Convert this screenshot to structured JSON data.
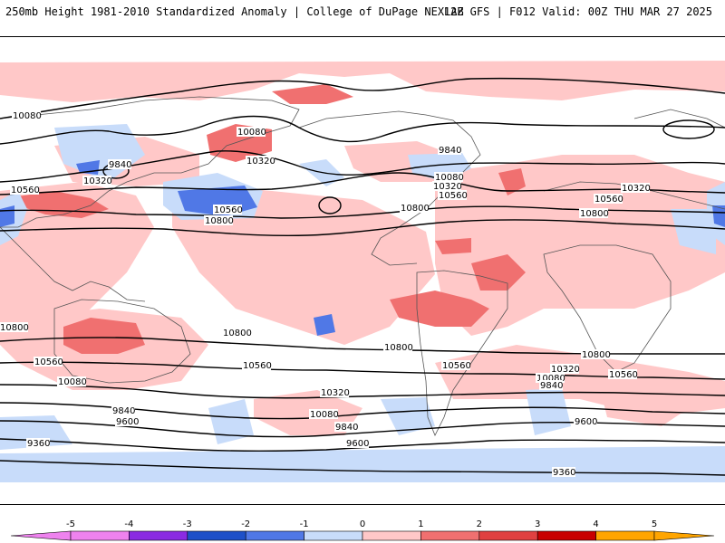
{
  "header": {
    "left": "250mb Height 1981-2010 Standardized Anomaly | College of DuPage NEXLAB",
    "right": "12Z GFS | F012 Valid: 00Z THU MAR 27 2025"
  },
  "colors": {
    "neg5": "#ee82ee",
    "neg4": "#8a2be2",
    "neg3": "#1e50c8",
    "neg2": "#5078e6",
    "neg1": "#c8dcfa",
    "zero": "#ffffff",
    "pos1": "#ffc8c8",
    "pos2": "#f07070",
    "pos3": "#e04040",
    "pos4": "#c80000",
    "pos5": "#ffa500"
  },
  "contour_labels": [
    {
      "text": "10080",
      "region": "north-pacific-west"
    },
    {
      "text": "10080",
      "region": "bering-sea"
    },
    {
      "text": "9840",
      "region": "siberia"
    },
    {
      "text": "10320",
      "region": "japan"
    },
    {
      "text": "10560",
      "region": "east-asia"
    },
    {
      "text": "10560",
      "region": "north-pacific"
    },
    {
      "text": "10800",
      "region": "central-pacific"
    },
    {
      "text": "10320",
      "region": "gulf-of-alaska"
    },
    {
      "text": "9840",
      "region": "hudson-bay"
    },
    {
      "text": "10080",
      "region": "great-lakes"
    },
    {
      "text": "10320",
      "region": "ohio-valley"
    },
    {
      "text": "10560",
      "region": "southeast-us"
    },
    {
      "text": "10800",
      "region": "gulf-of-mexico"
    },
    {
      "text": "10320",
      "region": "north-atlantic"
    },
    {
      "text": "10560",
      "region": "mediterranean"
    },
    {
      "text": "10800",
      "region": "north-africa"
    },
    {
      "text": "10800",
      "region": "south-indian-ocean-west"
    },
    {
      "text": "10560",
      "region": "south-indian-ocean"
    },
    {
      "text": "10080",
      "region": "south-indian-ocean-south"
    },
    {
      "text": "9840",
      "region": "southern-ocean-1"
    },
    {
      "text": "9600",
      "region": "southern-ocean-2"
    },
    {
      "text": "9360",
      "region": "antarctic-west"
    },
    {
      "text": "10800",
      "region": "south-pacific"
    },
    {
      "text": "10560",
      "region": "south-pacific-south"
    },
    {
      "text": "10320",
      "region": "south-pacific-deep"
    },
    {
      "text": "10080",
      "region": "south-pacific-deeper"
    },
    {
      "text": "9840",
      "region": "south-pacific-polar"
    },
    {
      "text": "9600",
      "region": "drake-passage"
    },
    {
      "text": "10800",
      "region": "south-atlantic"
    },
    {
      "text": "10560",
      "region": "patagonia"
    },
    {
      "text": "10320",
      "region": "south-atlantic-south"
    },
    {
      "text": "10080",
      "region": "scotia-sea"
    },
    {
      "text": "9840",
      "region": "weddell-sea-north"
    },
    {
      "text": "10800",
      "region": "south-atlantic-east"
    },
    {
      "text": "10560",
      "region": "south-africa-south"
    },
    {
      "text": "9600",
      "region": "southern-indian-polar"
    },
    {
      "text": "9360",
      "region": "antarctic-east"
    }
  ],
  "colorbar": {
    "ticks": [
      "-5",
      "-4",
      "-3",
      "-2",
      "-1",
      "0",
      "1",
      "2",
      "3",
      "4",
      "5"
    ]
  }
}
